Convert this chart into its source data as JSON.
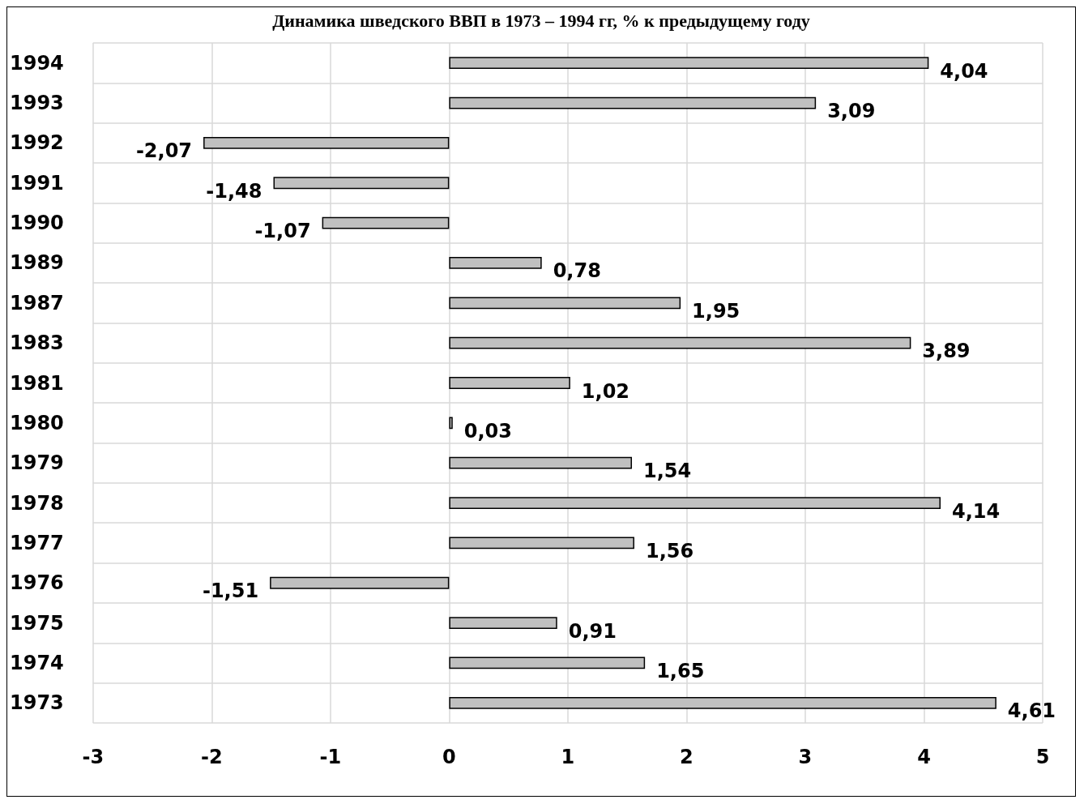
{
  "chart_data": {
    "type": "bar",
    "orientation": "horizontal",
    "title": "Динамика шведского ВВП в 1973 – 1994 гг, % к предыдущему году",
    "categories": [
      "1994",
      "1993",
      "1992",
      "1991",
      "1990",
      "1989",
      "1987",
      "1983",
      "1981",
      "1980",
      "1979",
      "1978",
      "1977",
      "1976",
      "1975",
      "1974",
      "1973"
    ],
    "values": [
      4.04,
      3.09,
      -2.07,
      -1.48,
      -1.07,
      0.78,
      1.95,
      3.89,
      1.02,
      0.03,
      1.54,
      4.14,
      1.56,
      -1.51,
      0.91,
      1.65,
      4.61
    ],
    "value_labels": [
      "4,04",
      "3,09",
      "-2,07",
      "-1,48",
      "-1,07",
      "0,78",
      "1,95",
      "3,89",
      "1,02",
      "0,03",
      "1,54",
      "4,14",
      "1,56",
      "-1,51",
      "0,91",
      "1,65",
      "4,61"
    ],
    "color": "#c0c0c0",
    "xlim": [
      -3,
      5
    ],
    "xticks": [
      -3,
      -2,
      -1,
      0,
      1,
      2,
      3,
      4,
      5
    ],
    "grid": true
  }
}
